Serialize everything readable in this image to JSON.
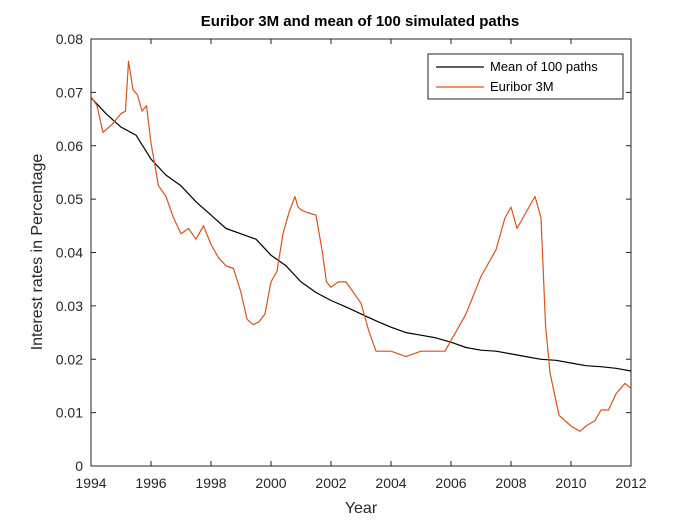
{
  "chart_data": {
    "type": "line",
    "title": "Euribor 3M and mean of 100 simulated paths",
    "xlabel": "Year",
    "ylabel": "Interest rates in Percentage",
    "xlim": [
      1994,
      2012
    ],
    "ylim": [
      0,
      0.08
    ],
    "xticks": [
      "1994",
      "1996",
      "1998",
      "2000",
      "2002",
      "2004",
      "2006",
      "2008",
      "2010",
      "2012"
    ],
    "yticks": [
      "0",
      "0.01",
      "0.02",
      "0.03",
      "0.04",
      "0.05",
      "0.06",
      "0.07",
      "0.08"
    ],
    "grid": false,
    "legend_position": "top-right",
    "series": [
      {
        "name": "Mean of 100 paths",
        "color": "#000000",
        "x": [
          1994.0,
          1994.5,
          1995.0,
          1995.5,
          1996.0,
          1996.5,
          1997.0,
          1997.5,
          1998.0,
          1998.5,
          1999.0,
          1999.5,
          2000.0,
          2000.5,
          2001.0,
          2001.5,
          2002.0,
          2002.5,
          2003.0,
          2003.5,
          2004.0,
          2004.5,
          2005.0,
          2005.5,
          2006.0,
          2006.5,
          2007.0,
          2007.5,
          2008.0,
          2008.5,
          2009.0,
          2009.5,
          2010.0,
          2010.5,
          2011.0,
          2011.5,
          2012.0
        ],
        "y": [
          0.069,
          0.066,
          0.0635,
          0.062,
          0.0575,
          0.0545,
          0.0525,
          0.0495,
          0.047,
          0.0445,
          0.0435,
          0.0425,
          0.0395,
          0.0375,
          0.0345,
          0.0325,
          0.031,
          0.0298,
          0.0285,
          0.0272,
          0.026,
          0.025,
          0.0245,
          0.024,
          0.0232,
          0.0222,
          0.0217,
          0.0215,
          0.021,
          0.0205,
          0.02,
          0.0198,
          0.0193,
          0.0188,
          0.0186,
          0.0183,
          0.0178
        ]
      },
      {
        "name": "Euribor 3M",
        "color": "#D95319",
        "x": [
          1994.0,
          1994.2,
          1994.4,
          1994.7,
          1995.0,
          1995.15,
          1995.25,
          1995.4,
          1995.55,
          1995.7,
          1995.85,
          1996.0,
          1996.25,
          1996.5,
          1996.75,
          1997.0,
          1997.25,
          1997.5,
          1997.75,
          1998.0,
          1998.25,
          1998.5,
          1998.75,
          1999.0,
          1999.2,
          1999.4,
          1999.6,
          1999.8,
          2000.0,
          2000.2,
          2000.4,
          2000.6,
          2000.8,
          2000.9,
          2001.0,
          2001.2,
          2001.5,
          2001.7,
          2001.85,
          2002.0,
          2002.25,
          2002.5,
          2002.75,
          2003.0,
          2003.25,
          2003.5,
          2004.0,
          2004.5,
          2005.0,
          2005.5,
          2005.8,
          2006.0,
          2006.5,
          2007.0,
          2007.5,
          2007.8,
          2008.0,
          2008.2,
          2008.5,
          2008.8,
          2009.0,
          2009.15,
          2009.3,
          2009.6,
          2010.0,
          2010.3,
          2010.5,
          2010.8,
          2011.0,
          2011.25,
          2011.5,
          2011.8,
          2012.0
        ],
        "y": [
          0.0692,
          0.0675,
          0.0625,
          0.064,
          0.066,
          0.0665,
          0.0758,
          0.0705,
          0.0695,
          0.0665,
          0.0675,
          0.0605,
          0.0525,
          0.0505,
          0.0465,
          0.0435,
          0.0445,
          0.0425,
          0.045,
          0.0415,
          0.039,
          0.0375,
          0.037,
          0.0325,
          0.0275,
          0.0265,
          0.027,
          0.0285,
          0.0345,
          0.0365,
          0.0435,
          0.0475,
          0.0505,
          0.0485,
          0.048,
          0.0475,
          0.047,
          0.0405,
          0.0345,
          0.0335,
          0.0345,
          0.0345,
          0.0325,
          0.0305,
          0.0255,
          0.0215,
          0.0215,
          0.0205,
          0.0215,
          0.0215,
          0.0215,
          0.0235,
          0.0285,
          0.0355,
          0.0405,
          0.0465,
          0.0485,
          0.0445,
          0.0475,
          0.0505,
          0.0465,
          0.0265,
          0.0175,
          0.0095,
          0.0075,
          0.0065,
          0.0075,
          0.0085,
          0.0105,
          0.0105,
          0.0135,
          0.0155,
          0.0145
        ]
      }
    ]
  }
}
